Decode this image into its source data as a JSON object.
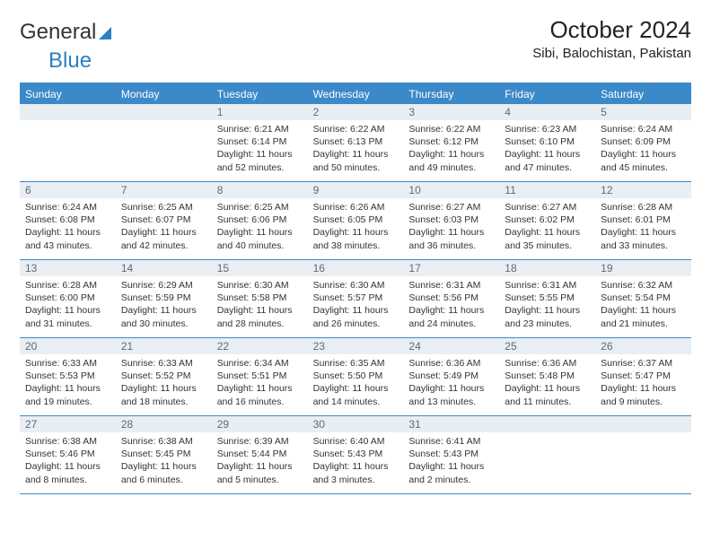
{
  "logo": {
    "textA": "General",
    "textB": "Blue"
  },
  "header": {
    "month_title": "October 2024",
    "location": "Sibi, Balochistan, Pakistan"
  },
  "colors": {
    "header_blue": "#3b89c9",
    "daynum_bg": "#e9eef3",
    "daynum_text": "#5b6b7b",
    "body_text": "#333333",
    "logo_blue": "#2d7fbf"
  },
  "dow": [
    "Sunday",
    "Monday",
    "Tuesday",
    "Wednesday",
    "Thursday",
    "Friday",
    "Saturday"
  ],
  "weeks": [
    [
      null,
      null,
      {
        "n": "1",
        "sr": "6:21 AM",
        "ss": "6:14 PM",
        "dl": "11 hours and 52 minutes."
      },
      {
        "n": "2",
        "sr": "6:22 AM",
        "ss": "6:13 PM",
        "dl": "11 hours and 50 minutes."
      },
      {
        "n": "3",
        "sr": "6:22 AM",
        "ss": "6:12 PM",
        "dl": "11 hours and 49 minutes."
      },
      {
        "n": "4",
        "sr": "6:23 AM",
        "ss": "6:10 PM",
        "dl": "11 hours and 47 minutes."
      },
      {
        "n": "5",
        "sr": "6:24 AM",
        "ss": "6:09 PM",
        "dl": "11 hours and 45 minutes."
      }
    ],
    [
      {
        "n": "6",
        "sr": "6:24 AM",
        "ss": "6:08 PM",
        "dl": "11 hours and 43 minutes."
      },
      {
        "n": "7",
        "sr": "6:25 AM",
        "ss": "6:07 PM",
        "dl": "11 hours and 42 minutes."
      },
      {
        "n": "8",
        "sr": "6:25 AM",
        "ss": "6:06 PM",
        "dl": "11 hours and 40 minutes."
      },
      {
        "n": "9",
        "sr": "6:26 AM",
        "ss": "6:05 PM",
        "dl": "11 hours and 38 minutes."
      },
      {
        "n": "10",
        "sr": "6:27 AM",
        "ss": "6:03 PM",
        "dl": "11 hours and 36 minutes."
      },
      {
        "n": "11",
        "sr": "6:27 AM",
        "ss": "6:02 PM",
        "dl": "11 hours and 35 minutes."
      },
      {
        "n": "12",
        "sr": "6:28 AM",
        "ss": "6:01 PM",
        "dl": "11 hours and 33 minutes."
      }
    ],
    [
      {
        "n": "13",
        "sr": "6:28 AM",
        "ss": "6:00 PM",
        "dl": "11 hours and 31 minutes."
      },
      {
        "n": "14",
        "sr": "6:29 AM",
        "ss": "5:59 PM",
        "dl": "11 hours and 30 minutes."
      },
      {
        "n": "15",
        "sr": "6:30 AM",
        "ss": "5:58 PM",
        "dl": "11 hours and 28 minutes."
      },
      {
        "n": "16",
        "sr": "6:30 AM",
        "ss": "5:57 PM",
        "dl": "11 hours and 26 minutes."
      },
      {
        "n": "17",
        "sr": "6:31 AM",
        "ss": "5:56 PM",
        "dl": "11 hours and 24 minutes."
      },
      {
        "n": "18",
        "sr": "6:31 AM",
        "ss": "5:55 PM",
        "dl": "11 hours and 23 minutes."
      },
      {
        "n": "19",
        "sr": "6:32 AM",
        "ss": "5:54 PM",
        "dl": "11 hours and 21 minutes."
      }
    ],
    [
      {
        "n": "20",
        "sr": "6:33 AM",
        "ss": "5:53 PM",
        "dl": "11 hours and 19 minutes."
      },
      {
        "n": "21",
        "sr": "6:33 AM",
        "ss": "5:52 PM",
        "dl": "11 hours and 18 minutes."
      },
      {
        "n": "22",
        "sr": "6:34 AM",
        "ss": "5:51 PM",
        "dl": "11 hours and 16 minutes."
      },
      {
        "n": "23",
        "sr": "6:35 AM",
        "ss": "5:50 PM",
        "dl": "11 hours and 14 minutes."
      },
      {
        "n": "24",
        "sr": "6:36 AM",
        "ss": "5:49 PM",
        "dl": "11 hours and 13 minutes."
      },
      {
        "n": "25",
        "sr": "6:36 AM",
        "ss": "5:48 PM",
        "dl": "11 hours and 11 minutes."
      },
      {
        "n": "26",
        "sr": "6:37 AM",
        "ss": "5:47 PM",
        "dl": "11 hours and 9 minutes."
      }
    ],
    [
      {
        "n": "27",
        "sr": "6:38 AM",
        "ss": "5:46 PM",
        "dl": "11 hours and 8 minutes."
      },
      {
        "n": "28",
        "sr": "6:38 AM",
        "ss": "5:45 PM",
        "dl": "11 hours and 6 minutes."
      },
      {
        "n": "29",
        "sr": "6:39 AM",
        "ss": "5:44 PM",
        "dl": "11 hours and 5 minutes."
      },
      {
        "n": "30",
        "sr": "6:40 AM",
        "ss": "5:43 PM",
        "dl": "11 hours and 3 minutes."
      },
      {
        "n": "31",
        "sr": "6:41 AM",
        "ss": "5:43 PM",
        "dl": "11 hours and 2 minutes."
      },
      null,
      null
    ]
  ],
  "labels": {
    "sunrise": "Sunrise:",
    "sunset": "Sunset:",
    "daylight": "Daylight:"
  }
}
